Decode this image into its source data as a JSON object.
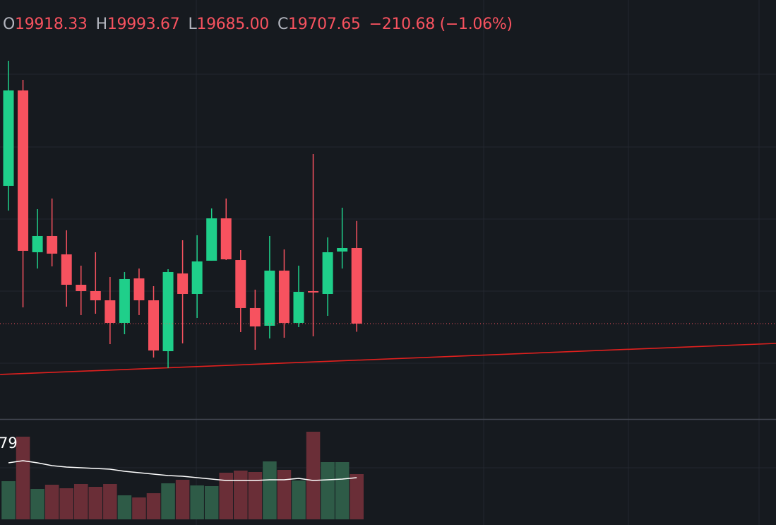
{
  "chart_data": {
    "type": "candlestick",
    "legend": {
      "open_label": "O",
      "open": "19918.33",
      "high_label": "H",
      "high": "19993.67",
      "low_label": "L",
      "low": "19685.00",
      "close_label": "C",
      "close": "19707.65",
      "change": "−210.68 (−1.06%)"
    },
    "ylim": [
      19441.8,
      20609.4
    ],
    "up_color": "#1fcf8a",
    "down_color": "#f7525f",
    "open": [
      20091.6,
      20357.4,
      19906.5,
      19951.8,
      19900.6,
      19815.9,
      19798.2,
      19772.6,
      19709.6,
      19833.7,
      19772.6,
      19630.8,
      19847.4,
      19790.3,
      19882.9,
      20001.0,
      19884.8,
      19751.0,
      19701.7,
      19855.3,
      19709.6,
      19798.2,
      19790.3,
      19908.5,
      19918.33
    ],
    "high": [
      20440.1,
      20387.0,
      20026.6,
      20056.2,
      19967.6,
      19869.1,
      19906.5,
      19837.6,
      19851.4,
      19861.2,
      19812.0,
      19859.3,
      19940.0,
      19953.8,
      20028.6,
      20056.2,
      19912.4,
      19802.2,
      19951.8,
      19914.4,
      19869.1,
      20180.2,
      19947.9,
      20030.6,
      19993.67
    ],
    "low": [
      20022.7,
      19752.9,
      19861.2,
      19867.1,
      19754.9,
      19731.3,
      19735.2,
      19650.5,
      19678.1,
      19731.3,
      19613.1,
      19583.6,
      19652.5,
      19723.4,
      19882.9,
      19884.8,
      19684.0,
      19634.8,
      19666.3,
      19668.3,
      19697.8,
      19672.2,
      19729.3,
      19861.2,
      19685.0
    ],
    "close": [
      20357.4,
      19910.5,
      19951.8,
      19902.6,
      19815.9,
      19798.2,
      19772.6,
      19709.6,
      19831.7,
      19772.6,
      19632.8,
      19851.4,
      19790.3,
      19880.9,
      20001.0,
      19886.8,
      19751.0,
      19699.8,
      19855.3,
      19709.6,
      19796.2,
      19794.3,
      19906.5,
      19918.3,
      19707.65
    ],
    "trendline": {
      "color": "#e0201e",
      "from": {
        "index": -0.58,
        "price": 19565.9
      },
      "to": {
        "index": 52.9,
        "price": 19652.5
      }
    },
    "volume": {
      "ylim": [
        0,
        141
      ],
      "label": "79",
      "up_color": "#2e5b47",
      "down_color": "#6a2e37",
      "ma_color": "#ffffff",
      "values": [
        54,
        117,
        43,
        49,
        44,
        50,
        46,
        50,
        34,
        31,
        37,
        51,
        56,
        48,
        47,
        66,
        69,
        67,
        82,
        70,
        55,
        124,
        81,
        81,
        64
      ],
      "ma": [
        80,
        83,
        80,
        76,
        74,
        73,
        72,
        71,
        68,
        66,
        64,
        62,
        61,
        59,
        57,
        55,
        55,
        55,
        56,
        56,
        58,
        55,
        56,
        57,
        59
      ]
    }
  }
}
